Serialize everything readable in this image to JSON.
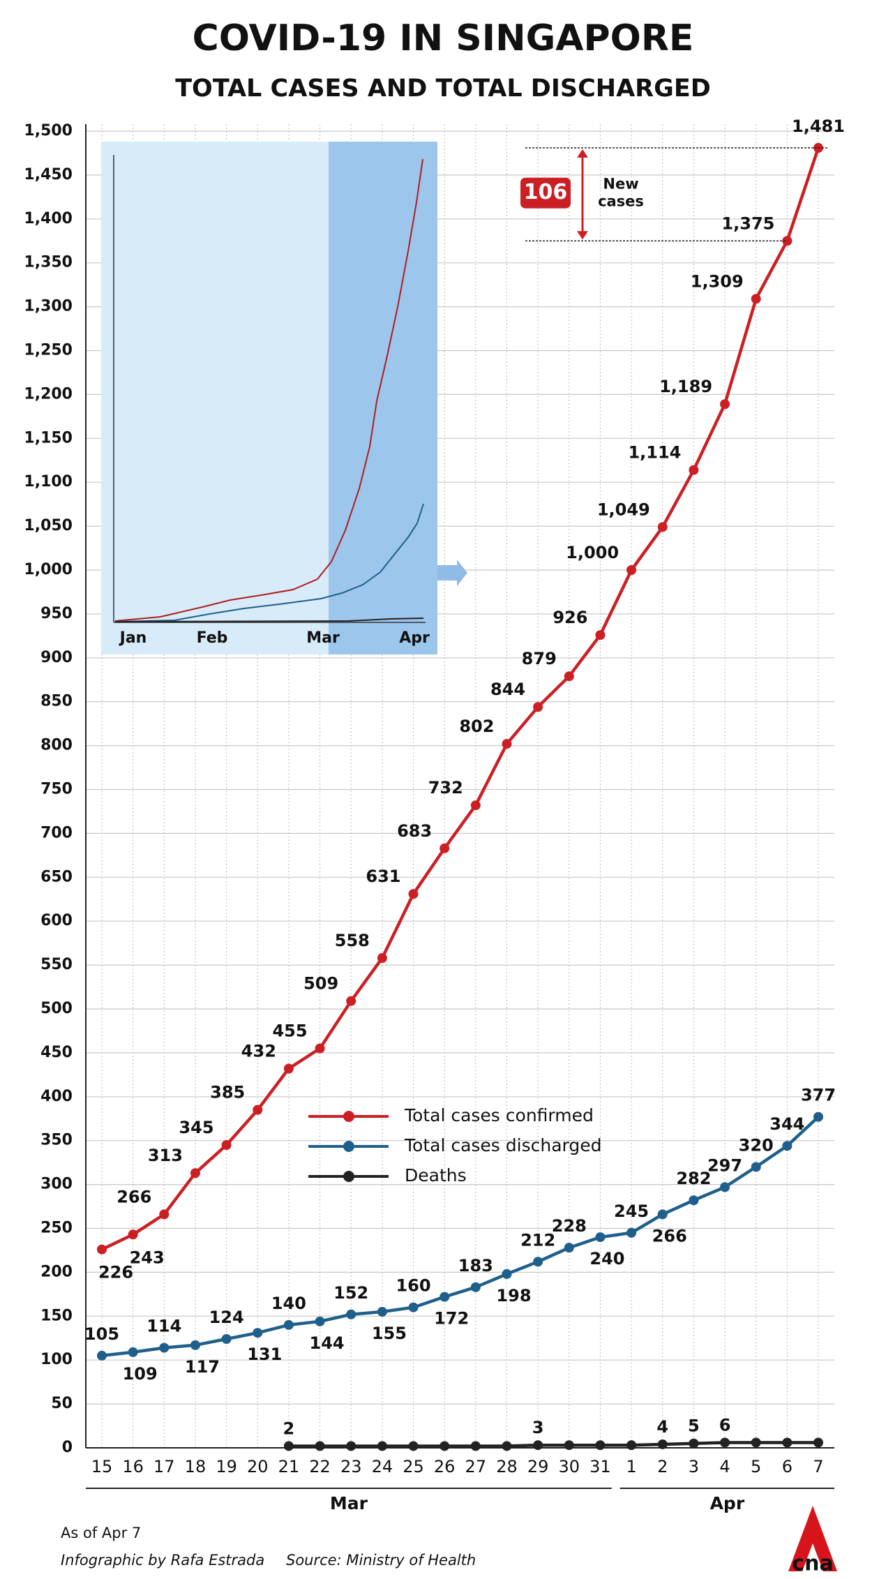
{
  "title": "COVID-19 IN SINGAPORE",
  "subtitle": "TOTAL CASES AND TOTAL DISCHARGED",
  "chart_data": {
    "type": "line",
    "categories": [
      "15",
      "16",
      "17",
      "18",
      "19",
      "20",
      "21",
      "22",
      "23",
      "24",
      "25",
      "26",
      "27",
      "28",
      "29",
      "30",
      "31",
      "1",
      "2",
      "3",
      "4",
      "5",
      "6",
      "7"
    ],
    "x_group_labels": [
      "Mar",
      "Apr"
    ],
    "series": [
      {
        "name": "Total cases confirmed",
        "color": "#cc1f24",
        "values": [
          226,
          243,
          266,
          313,
          345,
          385,
          432,
          455,
          509,
          558,
          631,
          683,
          732,
          802,
          844,
          879,
          926,
          1000,
          1049,
          1114,
          1189,
          1309,
          1375,
          1481
        ],
        "value_labels": [
          "226",
          "243",
          "266",
          "313",
          "345",
          "385",
          "432",
          "455",
          "509",
          "558",
          "631",
          "683",
          "732",
          "802",
          "844",
          "879",
          "926",
          "1,000",
          "1,049",
          "1,114",
          "1,189",
          "1,309",
          "1,375",
          "1,481"
        ]
      },
      {
        "name": "Total cases discharged",
        "color": "#1f5f8b",
        "values": [
          105,
          109,
          114,
          117,
          124,
          131,
          140,
          144,
          152,
          155,
          160,
          172,
          183,
          198,
          212,
          228,
          240,
          245,
          266,
          282,
          297,
          320,
          344,
          377
        ]
      },
      {
        "name": "Deaths",
        "color": "#222222",
        "values": [
          null,
          null,
          null,
          null,
          null,
          null,
          2,
          2,
          2,
          2,
          2,
          2,
          2,
          2,
          3,
          3,
          3,
          3,
          4,
          5,
          6,
          6,
          6,
          6
        ],
        "value_labels": [
          null,
          null,
          null,
          null,
          null,
          null,
          "2",
          null,
          null,
          null,
          null,
          null,
          null,
          null,
          "3",
          null,
          null,
          null,
          "4",
          "5",
          "6",
          null,
          null,
          null
        ]
      }
    ],
    "ylim": [
      0,
      1500
    ],
    "yticks": [
      0,
      50,
      100,
      150,
      200,
      250,
      300,
      350,
      400,
      450,
      500,
      550,
      600,
      650,
      700,
      750,
      800,
      850,
      900,
      950,
      {
        "value": 1000,
        "label": "1,000"
      },
      {
        "value": 1050,
        "label": "1,050"
      },
      {
        "value": 1100,
        "label": "1,100"
      },
      {
        "value": 1150,
        "label": "1,150"
      },
      {
        "value": 1200,
        "label": "1,200"
      },
      {
        "value": 1250,
        "label": "1,250"
      },
      {
        "value": 1300,
        "label": "1,300"
      },
      {
        "value": 1350,
        "label": "1,350"
      },
      {
        "value": 1400,
        "label": "1,400"
      },
      {
        "value": 1450,
        "label": "1,450"
      },
      {
        "value": 1500,
        "label": "1,500"
      }
    ],
    "grid": true,
    "annotation": {
      "value": 106,
      "text": [
        "New",
        "cases"
      ]
    },
    "inset": {
      "x_labels": [
        "Jan",
        "Feb",
        "Mar",
        "Apr"
      ]
    }
  },
  "footer": {
    "as_of": "As of Apr 7",
    "credit": "Infographic by Rafa Estrada",
    "source": "Source: Ministry of Health",
    "logo": "cna"
  }
}
